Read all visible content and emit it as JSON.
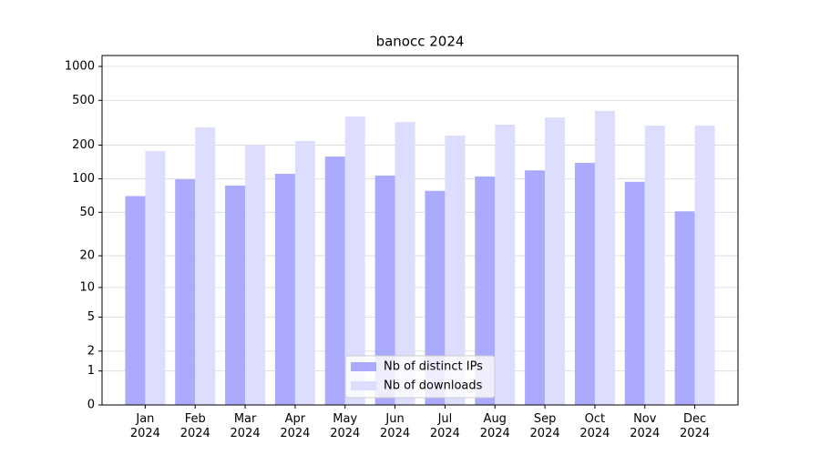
{
  "chart_data": {
    "type": "bar",
    "title": "banocc 2024",
    "categories": [
      "Jan\n2024",
      "Feb\n2024",
      "Mar\n2024",
      "Apr\n2024",
      "May\n2024",
      "Jun\n2024",
      "Jul\n2024",
      "Aug\n2024",
      "Sep\n2024",
      "Oct\n2024",
      "Nov\n2024",
      "Dec\n2024"
    ],
    "series": [
      {
        "name": "Nb of distinct IPs",
        "color": "#aaaaff",
        "values": [
          70,
          99,
          87,
          111,
          158,
          107,
          78,
          105,
          119,
          139,
          94,
          51
        ]
      },
      {
        "name": "Nb of downloads",
        "color": "#ddddff",
        "values": [
          177,
          287,
          201,
          217,
          359,
          321,
          243,
          304,
          352,
          402,
          298,
          298
        ]
      }
    ],
    "yscale": "log1p",
    "ylim": [
      0,
      1250
    ],
    "yticks": [
      0,
      1,
      2,
      5,
      10,
      20,
      50,
      100,
      200,
      500,
      1000
    ],
    "grid": true,
    "legend": "lower center"
  }
}
